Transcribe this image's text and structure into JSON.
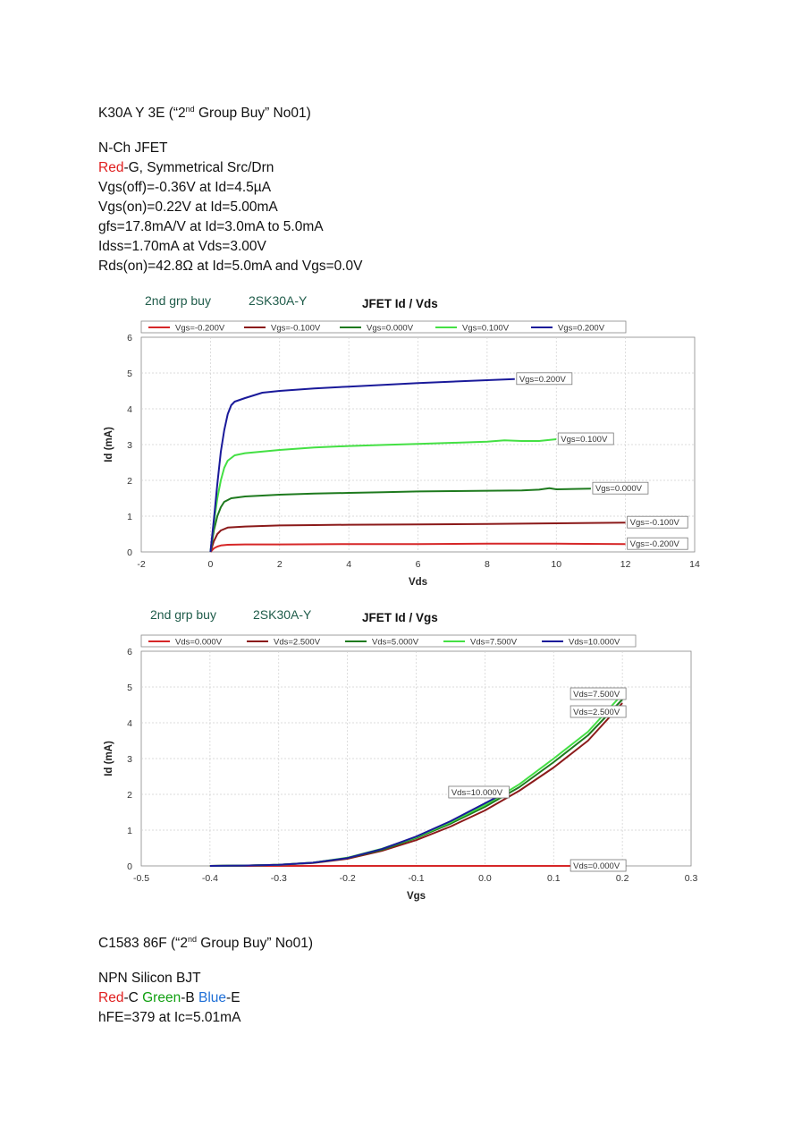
{
  "section1": {
    "heading_main": "K30A  Y  3E  (“2",
    "heading_sup": "nd",
    "heading_tail": " Group Buy” No01)",
    "type": "N-Ch JFET",
    "pinout_red": "Red",
    "pinout_rest": "-G, Symmetrical Src/Drn",
    "specs": [
      "Vgs(off)=-0.36V at Id=4.5µA",
      "Vgs(on)=0.22V at Id=5.00mA",
      "gfs=17.8mA/V at Id=3.0mA to 5.0mA",
      "Idss=1.70mA at Vds=3.00V",
      "Rds(on)=42.8Ω at Id=5.0mA and Vgs=0.0V"
    ]
  },
  "section2": {
    "heading_main": "C1583  86F  (“2",
    "heading_sup": "nd",
    "heading_tail": " Group Buy” No01)",
    "type": "NPN Silicon BJT",
    "pin_c_color": "Red",
    "pin_c": "-C ",
    "pin_b_color": "Green",
    "pin_b": "-B ",
    "pin_e_color": "Blue",
    "pin_e": "-E",
    "spec": "hFE=379 at Ic=5.01mA"
  },
  "chart_data": [
    {
      "type": "line",
      "title": "JFET Id / Vds",
      "header_left": "2nd grp buy",
      "header_mid": "2SK30A-Y",
      "xlabel": "Vds",
      "ylabel": "Id (mA)",
      "xlim": [
        -2,
        14
      ],
      "ylim": [
        0,
        6
      ],
      "xticks": [
        "-2",
        "0",
        "2",
        "4",
        "6",
        "8",
        "10",
        "12",
        "14"
      ],
      "yticks": [
        "0",
        "1",
        "2",
        "3",
        "4",
        "5",
        "6"
      ],
      "grid": true,
      "legend_position": "top",
      "series": [
        {
          "name": "Vgs=-0.200V",
          "color": "#d62728",
          "end_label": "Vgs=-0.200V",
          "x": [
            0,
            0.1,
            0.2,
            0.3,
            0.5,
            1,
            2,
            4,
            6,
            8,
            10,
            12
          ],
          "y": [
            0,
            0.1,
            0.15,
            0.18,
            0.2,
            0.21,
            0.21,
            0.22,
            0.22,
            0.23,
            0.23,
            0.22
          ]
        },
        {
          "name": "Vgs=-0.100V",
          "color": "#8b1a1a",
          "end_label": "Vgs=-0.100V",
          "x": [
            0,
            0.1,
            0.2,
            0.3,
            0.5,
            1,
            2,
            3,
            4,
            6,
            8,
            10,
            12
          ],
          "y": [
            0,
            0.3,
            0.5,
            0.6,
            0.68,
            0.71,
            0.74,
            0.75,
            0.76,
            0.77,
            0.78,
            0.8,
            0.82
          ]
        },
        {
          "name": "Vgs=0.000V",
          "color": "#1e7a1e",
          "end_label": "Vgs=0.000V",
          "x": [
            0,
            0.1,
            0.2,
            0.3,
            0.4,
            0.6,
            1,
            2,
            3,
            4,
            5,
            6,
            7,
            8,
            9,
            9.5,
            9.8,
            10,
            11
          ],
          "y": [
            0,
            0.6,
            1.0,
            1.25,
            1.4,
            1.5,
            1.55,
            1.6,
            1.63,
            1.65,
            1.67,
            1.69,
            1.7,
            1.71,
            1.72,
            1.74,
            1.78,
            1.75,
            1.77
          ]
        },
        {
          "name": "Vgs=0.100V",
          "color": "#44e044",
          "end_label": "Vgs=0.100V",
          "x": [
            0,
            0.1,
            0.2,
            0.3,
            0.4,
            0.5,
            0.7,
            1,
            2,
            3,
            4,
            5,
            6,
            7,
            8,
            8.5,
            9,
            9.5,
            10
          ],
          "y": [
            0,
            0.8,
            1.5,
            2.0,
            2.35,
            2.55,
            2.7,
            2.76,
            2.85,
            2.92,
            2.96,
            2.99,
            3.02,
            3.05,
            3.08,
            3.12,
            3.1,
            3.1,
            3.15
          ]
        },
        {
          "name": "Vgs=0.200V",
          "color": "#1a1a9a",
          "end_label": "Vgs=0.200V",
          "x": [
            0,
            0.1,
            0.2,
            0.3,
            0.4,
            0.5,
            0.6,
            0.7,
            1,
            1.5,
            2,
            3,
            4,
            5,
            6,
            7,
            8,
            8.8
          ],
          "y": [
            0,
            0.9,
            1.9,
            2.8,
            3.4,
            3.85,
            4.1,
            4.2,
            4.3,
            4.45,
            4.5,
            4.57,
            4.62,
            4.67,
            4.72,
            4.76,
            4.8,
            4.83
          ]
        }
      ]
    },
    {
      "type": "line",
      "title": "JFET Id / Vgs",
      "header_left": "2nd grp buy",
      "header_mid": "2SK30A-Y",
      "xlabel": "Vgs",
      "ylabel": "Id (mA)",
      "xlim": [
        -0.5,
        0.3
      ],
      "ylim": [
        0,
        6
      ],
      "xticks": [
        "-0.5",
        "-0.4",
        "-0.3",
        "-0.2",
        "-0.1",
        "0.0",
        "0.1",
        "0.2",
        "0.3"
      ],
      "yticks": [
        "0",
        "1",
        "2",
        "3",
        "4",
        "5",
        "6"
      ],
      "grid": true,
      "legend_position": "top",
      "series": [
        {
          "name": "Vds=0.000V",
          "color": "#d62728",
          "end_label": "Vds=0.000V",
          "x": [
            -0.4,
            -0.2,
            0.0,
            0.2
          ],
          "y": [
            0.0,
            0.0,
            0.0,
            0.0
          ]
        },
        {
          "name": "Vds=2.500V",
          "color": "#8b1a1a",
          "end_label": "Vds=2.500V",
          "x": [
            -0.4,
            -0.35,
            -0.3,
            -0.25,
            -0.2,
            -0.15,
            -0.1,
            -0.05,
            0.0,
            0.05,
            0.1,
            0.15,
            0.2
          ],
          "y": [
            0.0,
            0.01,
            0.03,
            0.08,
            0.2,
            0.42,
            0.72,
            1.1,
            1.55,
            2.1,
            2.75,
            3.5,
            4.55
          ]
        },
        {
          "name": "Vds=5.000V",
          "color": "#1e7a1e",
          "end_label": "",
          "x": [
            -0.4,
            -0.35,
            -0.3,
            -0.25,
            -0.2,
            -0.15,
            -0.1,
            -0.05,
            0.0,
            0.05,
            0.1,
            0.15,
            0.2
          ],
          "y": [
            0.0,
            0.01,
            0.03,
            0.09,
            0.22,
            0.45,
            0.78,
            1.18,
            1.65,
            2.2,
            2.9,
            3.65,
            4.65
          ]
        },
        {
          "name": "Vds=7.500V",
          "color": "#44e044",
          "end_label": "Vds=7.500V",
          "x": [
            -0.4,
            -0.35,
            -0.3,
            -0.25,
            -0.2,
            -0.15,
            -0.1,
            -0.05,
            0.0,
            0.05,
            0.1,
            0.15,
            0.2
          ],
          "y": [
            0.0,
            0.01,
            0.03,
            0.09,
            0.23,
            0.48,
            0.8,
            1.22,
            1.7,
            2.28,
            3.0,
            3.75,
            4.8
          ]
        },
        {
          "name": "Vds=10.000V",
          "color": "#1a1a9a",
          "end_label": "Vds=10.000V",
          "x": [
            -0.4,
            -0.35,
            -0.3,
            -0.25,
            -0.2,
            -0.15,
            -0.1,
            -0.05,
            0.0,
            0.03
          ],
          "y": [
            0.0,
            0.01,
            0.03,
            0.09,
            0.22,
            0.47,
            0.82,
            1.25,
            1.75,
            2.05
          ]
        }
      ]
    }
  ]
}
